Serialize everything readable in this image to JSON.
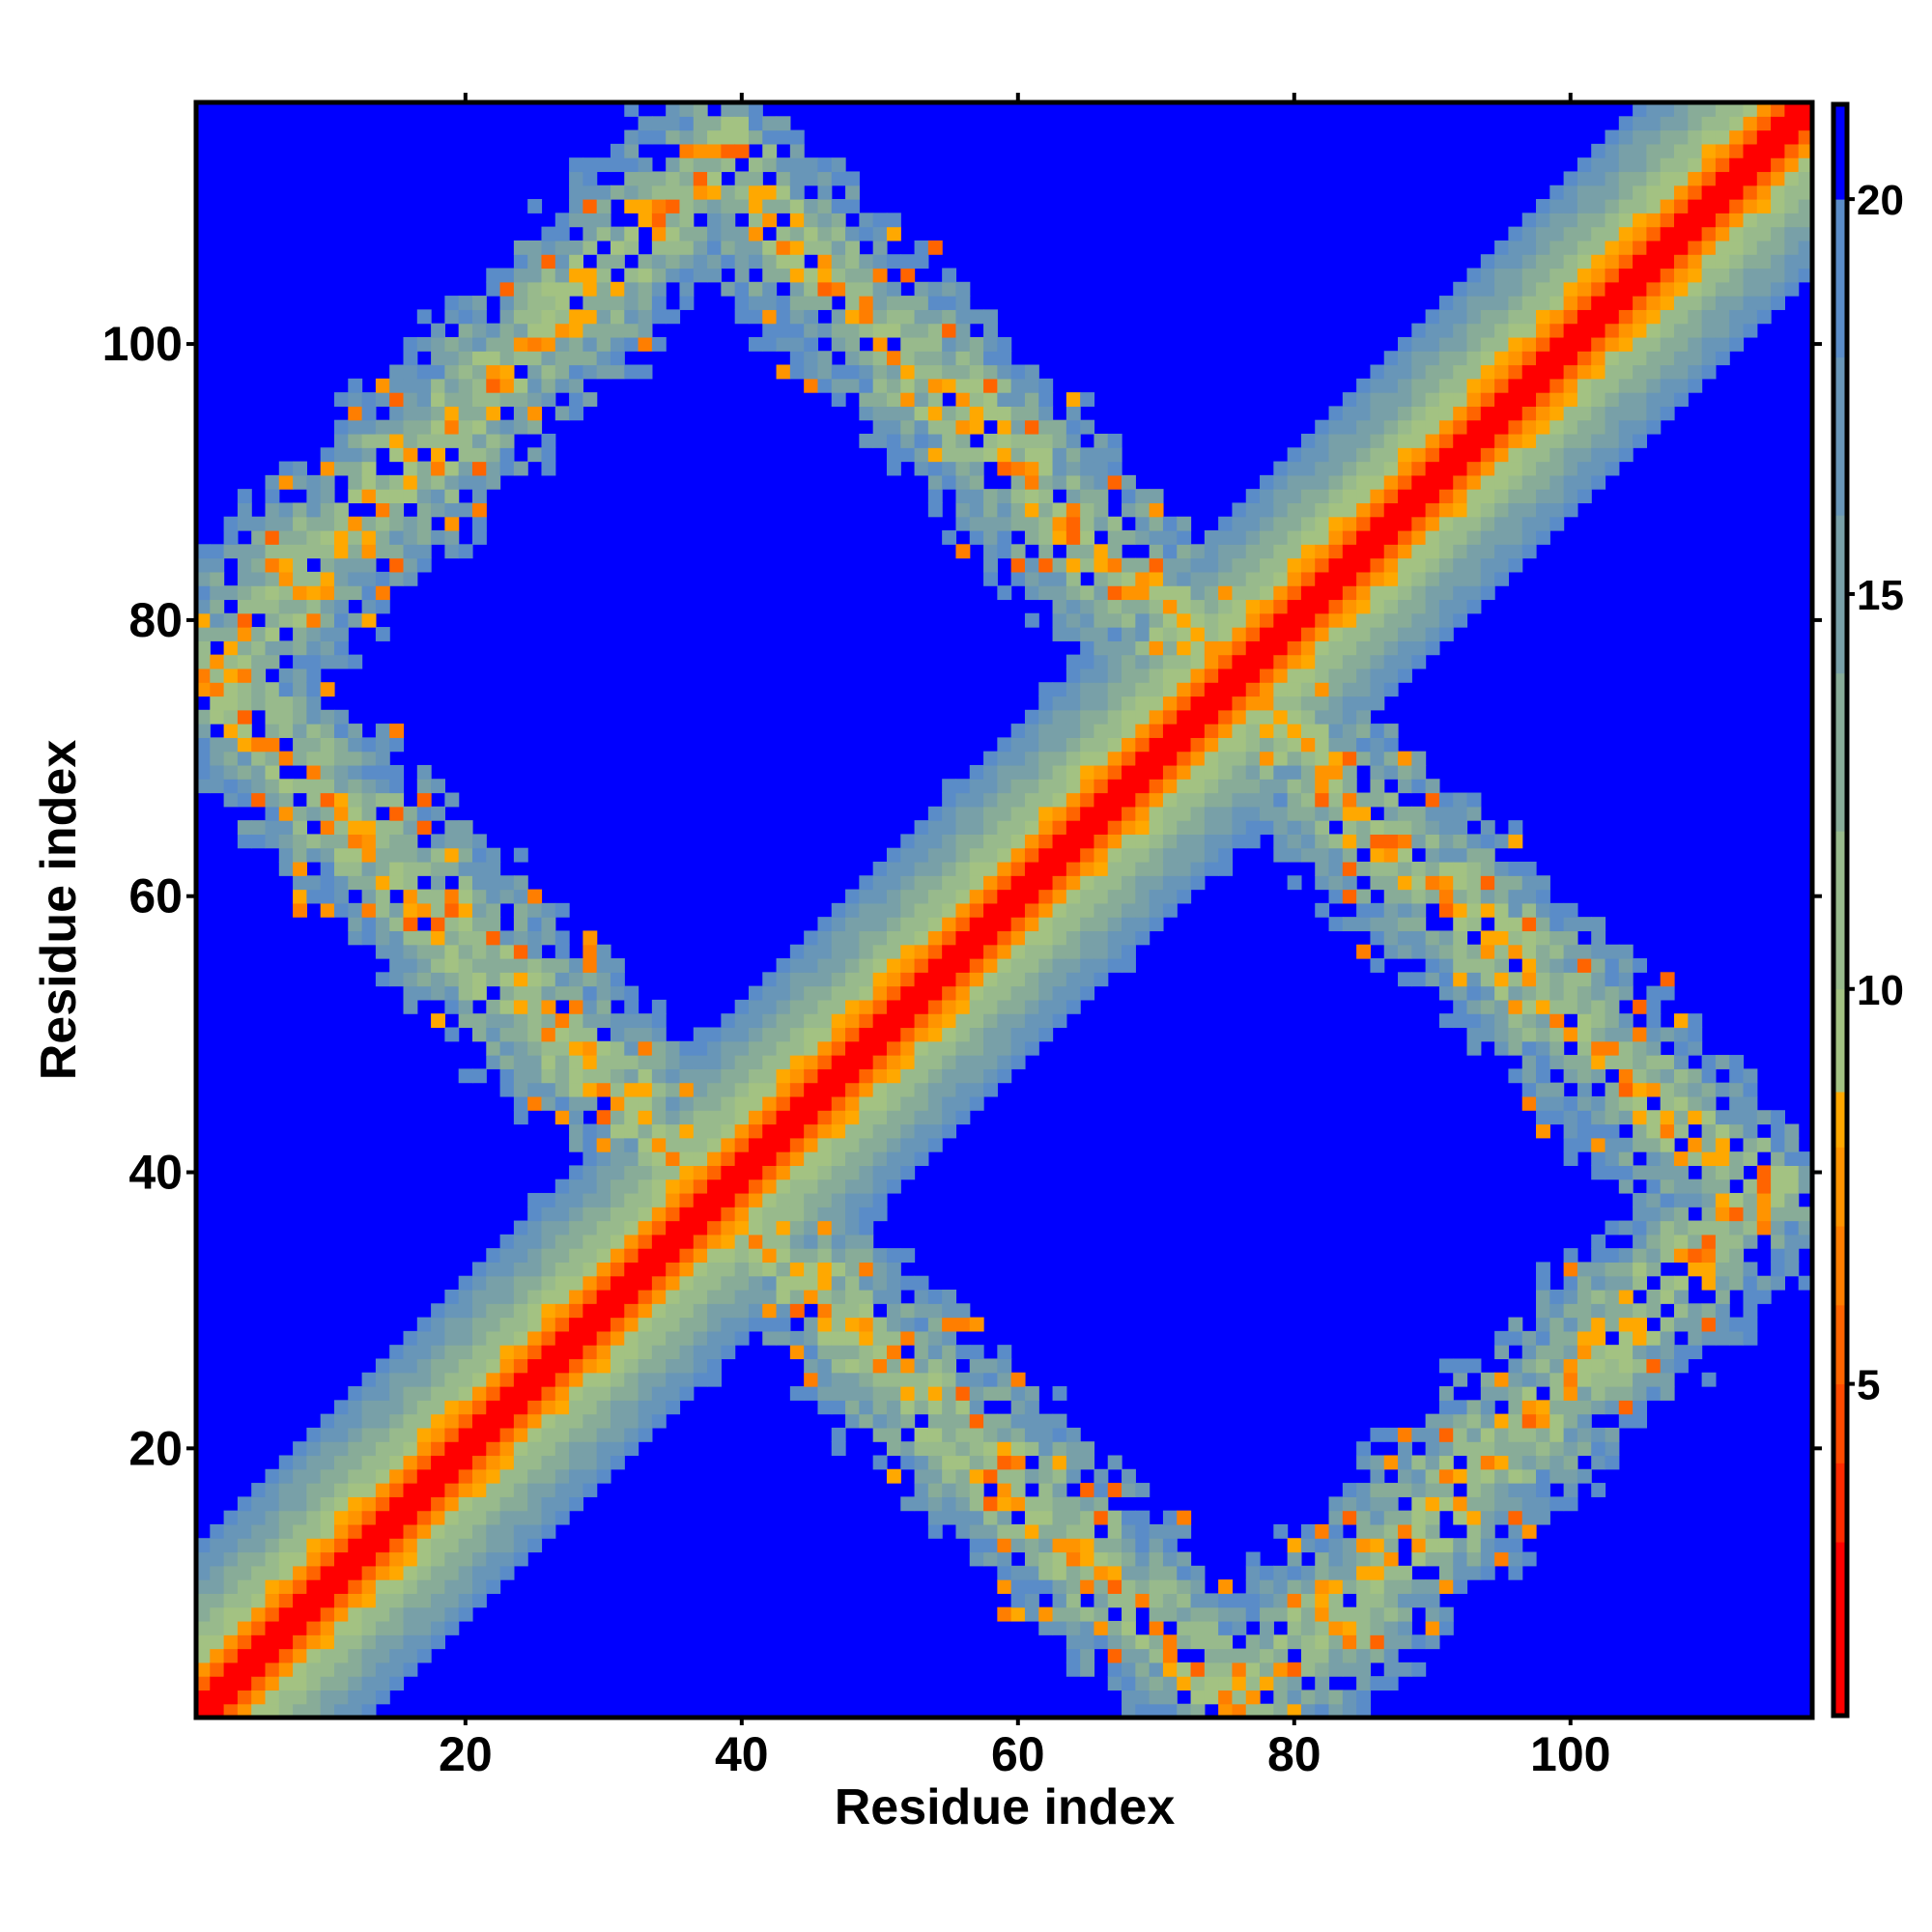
{
  "chart_data": {
    "type": "heatmap",
    "title": "",
    "xlabel": "Residue index",
    "ylabel": "Residue index",
    "n_residues": 117,
    "xlim": [
      0.5,
      117.5
    ],
    "ylim": [
      0.5,
      117.5
    ],
    "xticks": [
      20,
      40,
      60,
      80,
      100
    ],
    "yticks": [
      20,
      40,
      60,
      80,
      100
    ],
    "symmetric": true,
    "diagonal_band_values_by_offset": [
      1.0,
      1.6,
      5.5,
      7.5,
      9.0,
      10.2,
      11.4,
      12.6,
      13.8,
      15.0,
      16.2,
      17.4,
      18.6,
      20.5
    ],
    "off_diagonal_bands": [
      {
        "kind": "i+j",
        "center": 77,
        "halfwidth": 8,
        "j_minus_i_range": [
          2,
          74
        ]
      },
      {
        "kind": "j-i",
        "center": 75,
        "halfwidth": 8,
        "i_plus_j_range": [
          70,
          156
        ]
      },
      {
        "kind": "i+j",
        "center": 151,
        "halfwidth": 8,
        "j_minus_i_range": [
          2,
          78
        ]
      }
    ],
    "colorbar": {
      "range": [
        0.8,
        21.2
      ],
      "ticks": [
        5,
        10,
        15,
        20
      ],
      "levels": [
        {
          "max": 3,
          "color": "#ff0000"
        },
        {
          "max": 4,
          "color": "#ff2a00"
        },
        {
          "max": 5,
          "color": "#ff4a00"
        },
        {
          "max": 6,
          "color": "#ff6400"
        },
        {
          "max": 7,
          "color": "#ff7e00"
        },
        {
          "max": 8,
          "color": "#ff9400"
        },
        {
          "max": 8.7,
          "color": "#ffa800"
        },
        {
          "max": 10,
          "color": "#a3c282"
        },
        {
          "max": 12,
          "color": "#98ba8c"
        },
        {
          "max": 14,
          "color": "#88ac98"
        },
        {
          "max": 16,
          "color": "#78a0a8"
        },
        {
          "max": 18,
          "color": "#6896b8"
        },
        {
          "max": 20,
          "color": "#5a8cc8"
        },
        {
          "max": 99,
          "color": "#0000ff"
        }
      ]
    }
  }
}
